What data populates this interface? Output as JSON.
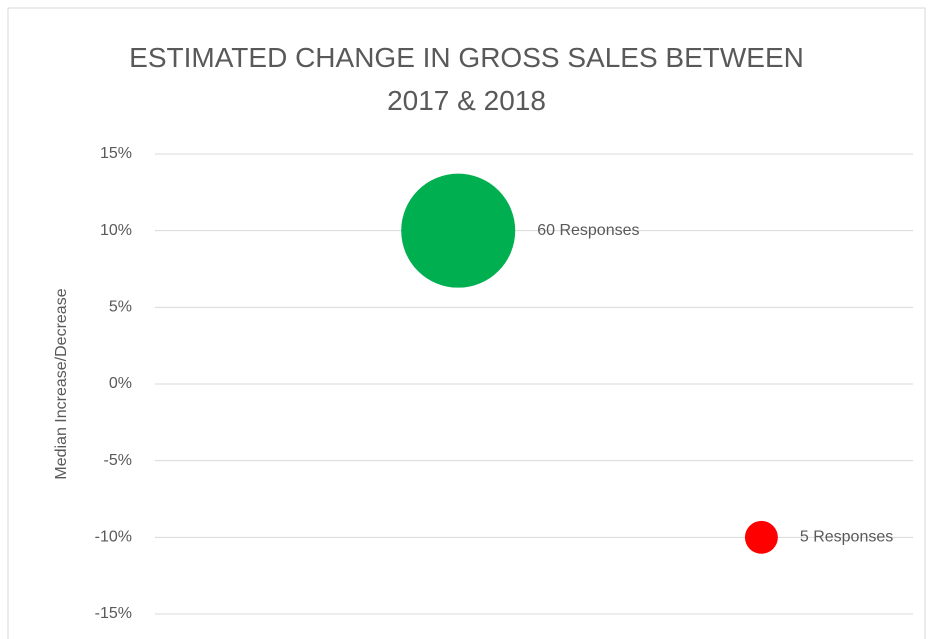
{
  "chart_data": {
    "type": "bubble",
    "title": "ESTIMATED CHANGE IN GROSS SALES BETWEEN 2017 & 2018",
    "y_label": "Median Increase/Decrease",
    "x": [
      1,
      2
    ],
    "values": [
      10,
      -10
    ],
    "sizes": [
      60,
      5
    ],
    "value_labels": [
      "60 Responses",
      "5 Responses"
    ],
    "colors": [
      "#00b050",
      "#ff0000"
    ],
    "xlim": [
      0,
      2.5
    ],
    "ylim": [
      -15,
      15
    ],
    "yticks": [
      {
        "value": -15,
        "label": "-15%"
      },
      {
        "value": -10,
        "label": "-10%"
      },
      {
        "value": -5,
        "label": "-5%"
      },
      {
        "value": 0,
        "label": "0%"
      },
      {
        "value": 5,
        "label": "5%"
      },
      {
        "value": 10,
        "label": "10%"
      },
      {
        "value": 15,
        "label": "15%"
      }
    ],
    "grid": true
  }
}
